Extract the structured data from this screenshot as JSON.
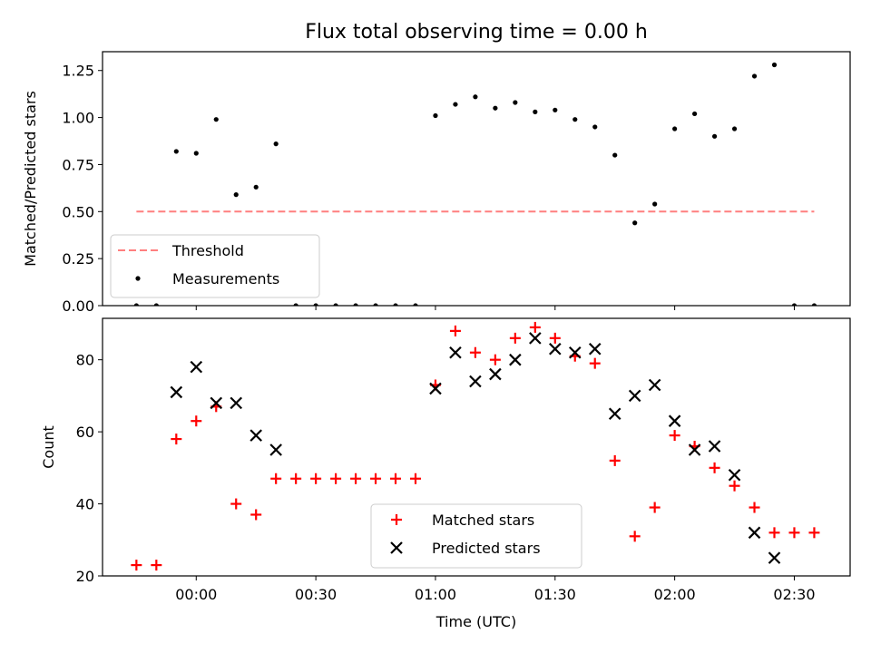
{
  "chart_data": [
    {
      "type": "scatter",
      "title": "Flux total observing time = 0.00 h",
      "ylabel": "Matched/Predicted stars",
      "xlabel": "",
      "x_unit": "minutes since 00:00 UTC",
      "xlim": [
        -23.5,
        164.0
      ],
      "ylim": [
        0.0,
        1.35
      ],
      "yticks": [
        0.0,
        0.25,
        0.5,
        0.75,
        1.0,
        1.25
      ],
      "ytick_labels": [
        "0.00",
        "0.25",
        "0.50",
        "0.75",
        "1.00",
        "1.25"
      ],
      "xticks": [
        0,
        30,
        60,
        90,
        120,
        150
      ],
      "show_xtick_labels": false,
      "legend": {
        "placement": "lower-left",
        "entries": [
          "Threshold",
          "Measurements"
        ]
      },
      "threshold": {
        "name": "Threshold",
        "value": 0.5,
        "x_range": [
          -15,
          155
        ],
        "color": "#ff7f7f",
        "style": "dashed"
      },
      "series": [
        {
          "name": "Measurements",
          "marker": "dot",
          "color": "#000000",
          "x": [
            -15,
            -10,
            -5,
            0,
            5,
            10,
            15,
            20,
            25,
            30,
            35,
            40,
            45,
            50,
            55,
            60,
            65,
            70,
            75,
            80,
            85,
            90,
            95,
            100,
            105,
            110,
            115,
            120,
            125,
            130,
            135,
            140,
            145,
            150,
            155
          ],
          "y": [
            0.0,
            0.0,
            0.82,
            0.81,
            0.99,
            0.59,
            0.63,
            0.86,
            0.0,
            0.0,
            0.0,
            0.0,
            0.0,
            0.0,
            0.0,
            1.01,
            1.07,
            1.11,
            1.05,
            1.08,
            1.03,
            1.04,
            0.99,
            0.95,
            0.8,
            0.44,
            0.54,
            0.94,
            1.02,
            0.9,
            0.94,
            1.22,
            1.28,
            0.0,
            0.0
          ]
        }
      ]
    },
    {
      "type": "scatter",
      "title": "",
      "ylabel": "Count",
      "xlabel": "Time (UTC)",
      "x_unit": "minutes since 00:00 UTC",
      "xlim": [
        -23.5,
        164.0
      ],
      "ylim": [
        20.0,
        91.5
      ],
      "yticks": [
        20,
        40,
        60,
        80
      ],
      "ytick_labels": [
        "20",
        "40",
        "60",
        "80"
      ],
      "xticks": [
        0,
        30,
        60,
        90,
        120,
        150
      ],
      "xtick_labels": [
        "00:00",
        "00:30",
        "01:00",
        "01:30",
        "02:00",
        "02:30"
      ],
      "legend": {
        "placement": "lower-center",
        "entries": [
          "Matched stars",
          "Predicted stars"
        ]
      },
      "series": [
        {
          "name": "Matched stars",
          "marker": "plus",
          "color": "#ff0000",
          "x": [
            -15,
            -10,
            -5,
            0,
            5,
            10,
            15,
            20,
            25,
            30,
            35,
            40,
            45,
            50,
            55,
            60,
            65,
            70,
            75,
            80,
            85,
            90,
            95,
            100,
            105,
            110,
            115,
            120,
            125,
            130,
            135,
            140,
            145,
            150,
            155
          ],
          "y": [
            23,
            23,
            58,
            63,
            67,
            40,
            37,
            47,
            47,
            47,
            47,
            47,
            47,
            47,
            47,
            73,
            88,
            82,
            80,
            86,
            89,
            86,
            81,
            79,
            52,
            31,
            39,
            59,
            56,
            50,
            45,
            39,
            32,
            32,
            32
          ]
        },
        {
          "name": "Predicted stars",
          "marker": "x",
          "color": "#000000",
          "x": [
            -5,
            0,
            5,
            10,
            15,
            20,
            60,
            65,
            70,
            75,
            80,
            85,
            90,
            95,
            100,
            105,
            110,
            115,
            120,
            125,
            130,
            135,
            140,
            145
          ],
          "y": [
            71,
            78,
            68,
            68,
            59,
            55,
            72,
            82,
            74,
            76,
            80,
            86,
            83,
            82,
            83,
            65,
            70,
            73,
            63,
            55,
            56,
            48,
            32,
            25
          ]
        }
      ]
    }
  ]
}
